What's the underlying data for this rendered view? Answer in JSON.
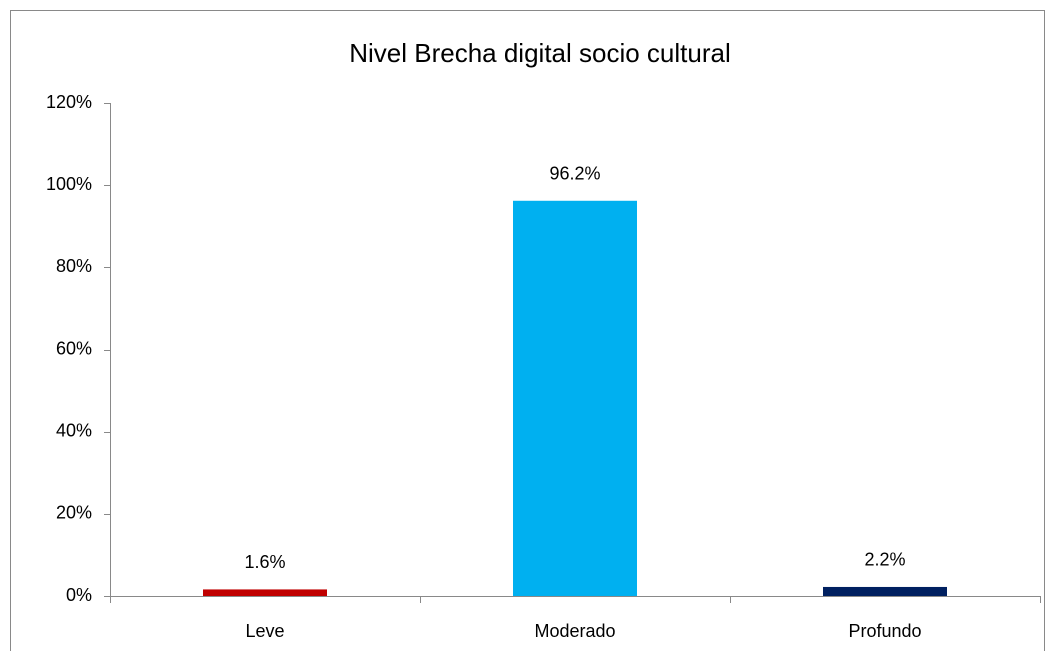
{
  "chart_data": {
    "type": "bar",
    "title": "Nivel Brecha digital socio cultural",
    "categories": [
      "Leve",
      "Moderado",
      "Profundo"
    ],
    "values": [
      1.6,
      96.2,
      2.2
    ],
    "value_labels": [
      "1.6%",
      "96.2%",
      "2.2%"
    ],
    "colors": [
      "#c00000",
      "#00b0f0",
      "#002060"
    ],
    "ylim": [
      0,
      120
    ],
    "yticks": [
      {
        "value": 0,
        "label": "0%"
      },
      {
        "value": 20,
        "label": "20%"
      },
      {
        "value": 40,
        "label": "40%"
      },
      {
        "value": 60,
        "label": "60%"
      },
      {
        "value": 80,
        "label": "80%"
      },
      {
        "value": 100,
        "label": "100%"
      },
      {
        "value": 120,
        "label": "120%"
      }
    ],
    "grid": false
  }
}
